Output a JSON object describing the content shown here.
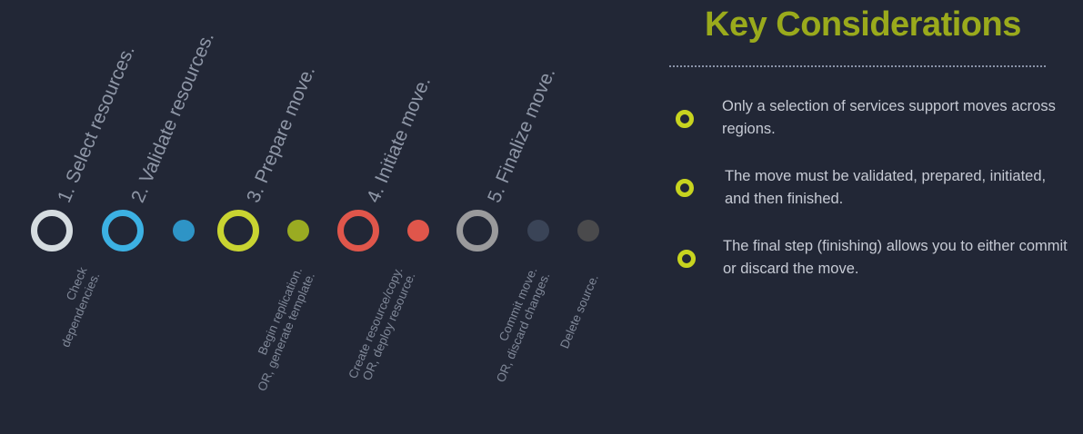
{
  "title": "Key Considerations",
  "steps": [
    {
      "label": "1. Select resources.",
      "color": "#d5dce0"
    },
    {
      "label": "2. Validate resources.",
      "color": "#3cb1e3"
    },
    {
      "label": "3. Prepare move.",
      "color": "#c9d431"
    },
    {
      "label": "4. Initiate move.",
      "color": "#e0564b"
    },
    {
      "label": "5. Finalize move.",
      "color": "#9a9a9c"
    }
  ],
  "substeps": [
    {
      "lines": [
        "Check",
        "dependencies."
      ],
      "color": "#2e94c6"
    },
    {
      "lines": [
        "Begin replication.",
        "OR, generate template."
      ],
      "color": "#9aab22"
    },
    {
      "lines": [
        "Create resource/copy.",
        "OR, deploy resource."
      ],
      "color": "#e0564b"
    },
    {
      "lines": [
        "Commit move.",
        "OR, discard changes."
      ],
      "color": "#3a4457"
    },
    {
      "lines": [
        "Delete source."
      ],
      "color": "#4a4a4c"
    }
  ],
  "considerations": [
    {
      "text": "Only a selection of services support moves across regions.",
      "icon": "circle-bullet-icon"
    },
    {
      "text": "The move must be validated, prepared, initiated, and then finished.",
      "icon": "circle-bullet-icon"
    },
    {
      "text": "The final step (finishing) allows you to either commit or discard the move.",
      "icon": "circle-bullet-icon"
    }
  ],
  "colors": {
    "background": "#222736",
    "accent": "#9aaa1c",
    "bullet": "#c8d41f"
  }
}
